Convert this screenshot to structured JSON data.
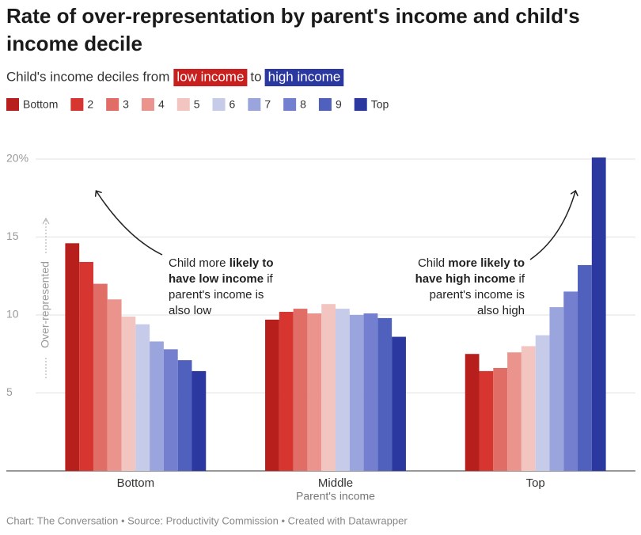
{
  "chart_data": {
    "type": "bar",
    "title": [
      "Rate of over-representation by parent's income and child's",
      "income decile"
    ],
    "subtitle": {
      "before": "Child's income deciles from",
      "low": "low income",
      "middle": "to",
      "high": "high income",
      "low_color": "#c8201e",
      "high_color": "#2a38a0"
    },
    "categories": [
      "Bottom",
      "Middle",
      "Top"
    ],
    "x_label": "Parent's income",
    "y_label": "Over-represented",
    "ylim": [
      0,
      20.2
    ],
    "yticks": [
      5,
      10,
      15,
      {
        "value": 20,
        "label": "20%"
      }
    ],
    "grid": true,
    "series": [
      {
        "name": "Bottom",
        "color": "#b61f1c",
        "values": [
          14.6,
          9.7,
          7.5
        ]
      },
      {
        "name": "2",
        "color": "#d63530",
        "values": [
          13.4,
          10.2,
          6.4
        ]
      },
      {
        "name": "3",
        "color": "#e06d66",
        "values": [
          12.0,
          10.4,
          6.6
        ]
      },
      {
        "name": "4",
        "color": "#ea948d",
        "values": [
          11.0,
          10.1,
          7.6
        ]
      },
      {
        "name": "5",
        "color": "#f2c5c1",
        "values": [
          9.9,
          10.7,
          8.0
        ]
      },
      {
        "name": "6",
        "color": "#c6cbea",
        "values": [
          9.4,
          10.4,
          8.7
        ]
      },
      {
        "name": "7",
        "color": "#9aa4dd",
        "values": [
          8.3,
          10.0,
          10.5
        ]
      },
      {
        "name": "8",
        "color": "#7480cf",
        "values": [
          7.8,
          10.1,
          11.5
        ]
      },
      {
        "name": "9",
        "color": "#5060bd",
        "values": [
          7.1,
          9.8,
          13.2
        ]
      },
      {
        "name": "Top",
        "color": "#2a38a0",
        "values": [
          6.4,
          8.6,
          20.1
        ]
      }
    ],
    "annotations": [
      [
        [
          {
            "text": "Child more "
          },
          {
            "text": "likely to",
            "bold": true
          }
        ],
        [
          {
            "text": "have low income",
            "bold": true
          },
          {
            "text": " if"
          }
        ],
        [
          {
            "text": "parent's income is"
          }
        ],
        [
          {
            "text": "also low"
          }
        ]
      ],
      [
        [
          {
            "text": "Child "
          },
          {
            "text": "more likely to",
            "bold": true
          }
        ],
        [
          {
            "text": "have high income",
            "bold": true
          },
          {
            "text": " if"
          }
        ],
        [
          {
            "text": "parent's income is"
          }
        ],
        [
          {
            "text": "also high"
          }
        ]
      ]
    ],
    "footer": "Chart: The Conversation • Source: Productivity Commission • Created with Datawrapper"
  }
}
